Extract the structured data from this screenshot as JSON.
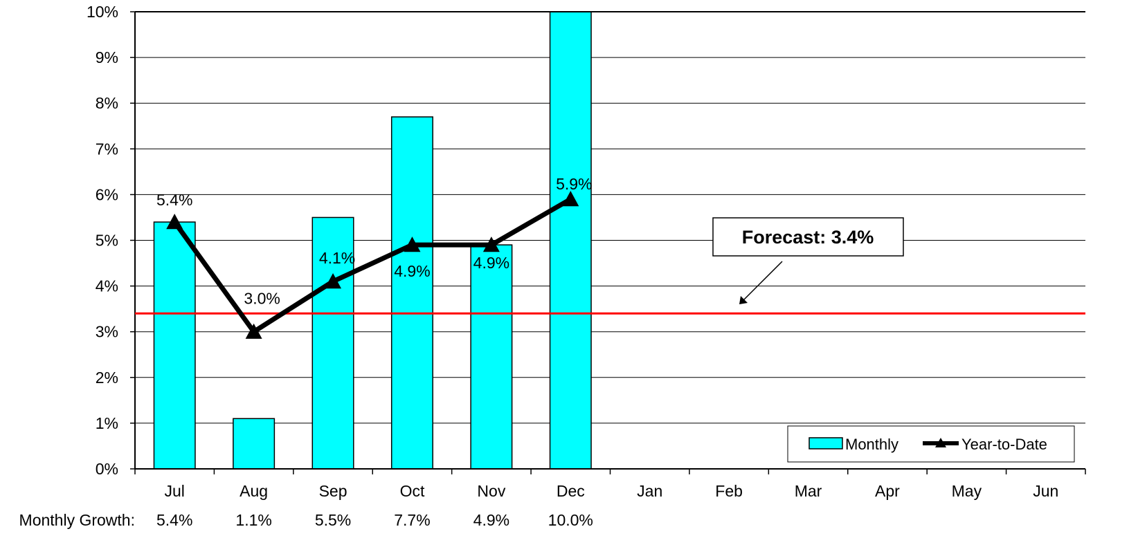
{
  "chart_data": {
    "type": "bar",
    "categories": [
      "Jul",
      "Aug",
      "Sep",
      "Oct",
      "Nov",
      "Dec",
      "Jan",
      "Feb",
      "Mar",
      "Apr",
      "May",
      "Jun"
    ],
    "series": [
      {
        "name": "Monthly",
        "type": "bar",
        "color": "#00FFFF",
        "values": [
          5.4,
          1.1,
          5.5,
          7.7,
          4.9,
          10.0,
          null,
          null,
          null,
          null,
          null,
          null
        ]
      },
      {
        "name": "Year-to-Date",
        "type": "line",
        "color": "#000000",
        "marker": "triangle",
        "values": [
          5.4,
          3.0,
          4.1,
          4.9,
          4.9,
          5.9,
          null,
          null,
          null,
          null,
          null,
          null
        ],
        "labels": [
          "5.4%",
          "3.0%",
          "4.1%",
          "4.9%",
          "4.9%",
          "5.9%"
        ]
      }
    ],
    "ylim": [
      0,
      10
    ],
    "yticks": [
      "0%",
      "1%",
      "2%",
      "3%",
      "4%",
      "5%",
      "6%",
      "7%",
      "8%",
      "9%",
      "10%"
    ],
    "grid": true,
    "legend": {
      "position": "bottom-right",
      "entries": [
        "Monthly",
        "Year-to-Date"
      ]
    },
    "reference_line": {
      "value": 3.4,
      "color": "#FF0000"
    },
    "annotation": {
      "text": "Forecast: 3.4%"
    },
    "table_row": {
      "label": "Monthly Growth:",
      "values": [
        "5.4%",
        "1.1%",
        "5.5%",
        "7.7%",
        "4.9%",
        "10.0%"
      ]
    }
  }
}
